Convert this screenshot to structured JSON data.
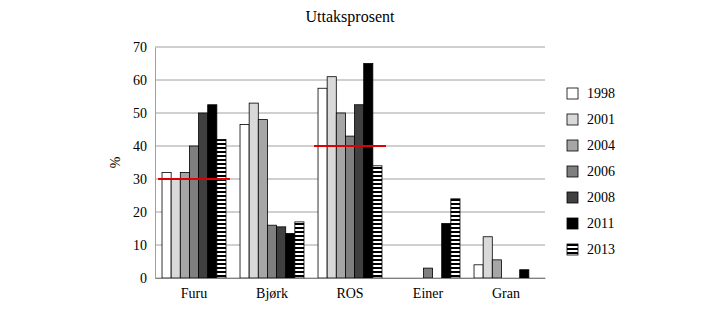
{
  "chart_data": {
    "type": "bar",
    "title": "Uttaksprosent",
    "y_label": "%",
    "categories": [
      "Furu",
      "Bjørk",
      "ROS",
      "Einer",
      "Gran"
    ],
    "series": [
      {
        "name": "1998",
        "color": "#ffffff",
        "values": [
          32,
          46.5,
          57.5,
          null,
          4
        ]
      },
      {
        "name": "2001",
        "color": "#d9d9d9",
        "values": [
          30,
          53,
          61,
          null,
          12.5
        ]
      },
      {
        "name": "2004",
        "color": "#a6a6a6",
        "values": [
          32,
          48,
          50,
          null,
          5.5
        ]
      },
      {
        "name": "2006",
        "color": "#7f7f7f",
        "values": [
          40,
          16,
          43,
          3,
          null
        ]
      },
      {
        "name": "2008",
        "color": "#404040",
        "values": [
          50,
          15.5,
          52.5,
          null,
          null
        ]
      },
      {
        "name": "2011",
        "color": "#000000",
        "values": [
          52.5,
          13.5,
          65,
          16.5,
          2.5
        ]
      },
      {
        "name": "2013",
        "color": "#000000",
        "marker": "hatch",
        "values": [
          42,
          17,
          34,
          24,
          null
        ]
      }
    ],
    "reference_lines": [
      {
        "category": "Furu",
        "value": 30,
        "color": "#e00000"
      },
      {
        "category": "ROS",
        "value": 40,
        "color": "#e00000"
      }
    ],
    "ylim": [
      0,
      70
    ],
    "yticks": [
      0,
      10,
      20,
      30,
      40,
      50,
      60,
      70
    ],
    "grid": true,
    "legend": "right"
  }
}
